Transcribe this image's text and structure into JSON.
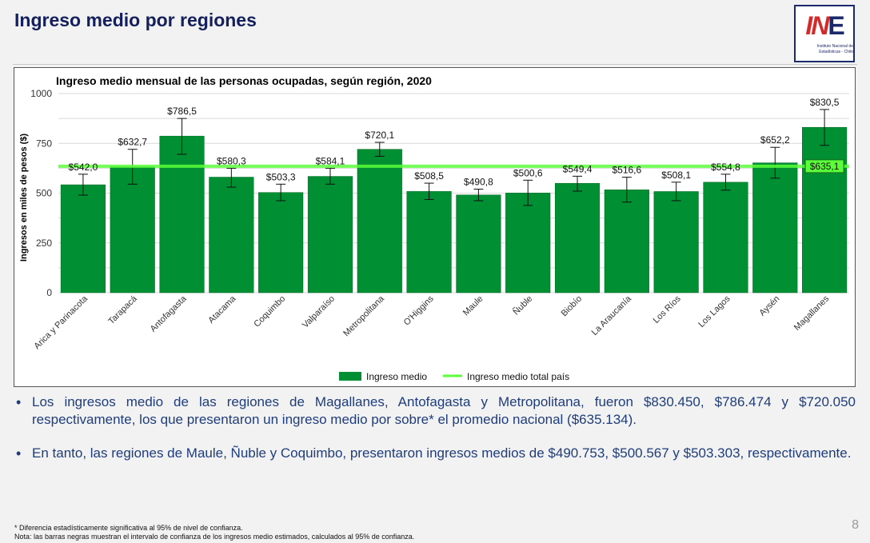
{
  "slide": {
    "title": "Ingreso medio por regiones",
    "page_number": "8"
  },
  "logo": {
    "mark_i": "I",
    "mark_n": "N",
    "mark_e": "E",
    "line1": "Instituto Nacional de",
    "line2": "Estadísticas - Chile"
  },
  "bullets": [
    "Los ingresos medio de las regiones de Magallanes, Antofagasta y Metropolitana, fueron $830.450, $786.474 y $720.050 respectivamente, los que presentaron un ingreso medio por sobre* el promedio nacional ($635.134).",
    "En tanto, las regiones de Maule, Ñuble y Coquimbo, presentaron ingresos medios de $490.753, $500.567 y $503.303, respectivamente."
  ],
  "footnotes": {
    "f1": "* Diferencia estadísticamente significativa al 95% de nivel de confianza.",
    "f2": "Nota: las barras negras muestran el intervalo de confianza de los ingresos medio estimados, calculados al 95% de confianza."
  },
  "colors": {
    "bar": "#008f32",
    "bar_stroke": "#006622",
    "reference_line": "#5aff3a",
    "reference_label_bg": "#5aff3a",
    "grid": "#d9d9d9",
    "title_color": "#14205c",
    "bullet_text": "#1f3d7a"
  },
  "chart_data": {
    "type": "bar",
    "title": "Ingreso medio mensual de las personas ocupadas, según región, 2020",
    "xlabel": "",
    "ylabel": "Ingresos en miles de pesos ($)",
    "ylim": [
      0,
      1000
    ],
    "yticks": [
      "0",
      "250",
      "500",
      "750",
      "1000"
    ],
    "categories": [
      "Arica y Parinacota",
      "Tarapacá",
      "Antofagasta",
      "Atacama",
      "Coquimbo",
      "Valparaíso",
      "Metropolitana",
      "O'Higgins",
      "Maule",
      "Ñuble",
      "Biobío",
      "La Araucanía",
      "Los Ríos",
      "Los Lagos",
      "Aysén",
      "Magallanes"
    ],
    "series": [
      {
        "name": "Ingreso medio",
        "values": [
          542.0,
          632.7,
          786.5,
          580.3,
          503.3,
          584.1,
          720.1,
          508.5,
          490.8,
          500.6,
          549.4,
          516.6,
          508.1,
          554.8,
          652.2,
          830.5
        ],
        "labels": [
          "$542,0",
          "$632,7",
          "$786,5",
          "$580,3",
          "$503,3",
          "$584,1",
          "$720,1",
          "$508,5",
          "$490,8",
          "$500,6",
          "$549,4",
          "$516,6",
          "$508,1",
          "$554,8",
          "$652,2",
          "$830,5"
        ],
        "ci_low": [
          490,
          545,
          695,
          530,
          462,
          545,
          685,
          468,
          462,
          438,
          510,
          455,
          462,
          515,
          575,
          740
        ],
        "ci_high": [
          595,
          720,
          875,
          625,
          545,
          625,
          755,
          550,
          520,
          565,
          585,
          580,
          555,
          595,
          730,
          920
        ]
      }
    ],
    "reference": {
      "name": "Ingreso medio total país",
      "value": 635.1,
      "label": "$635,1"
    },
    "legend_position": "bottom",
    "grid": true
  }
}
